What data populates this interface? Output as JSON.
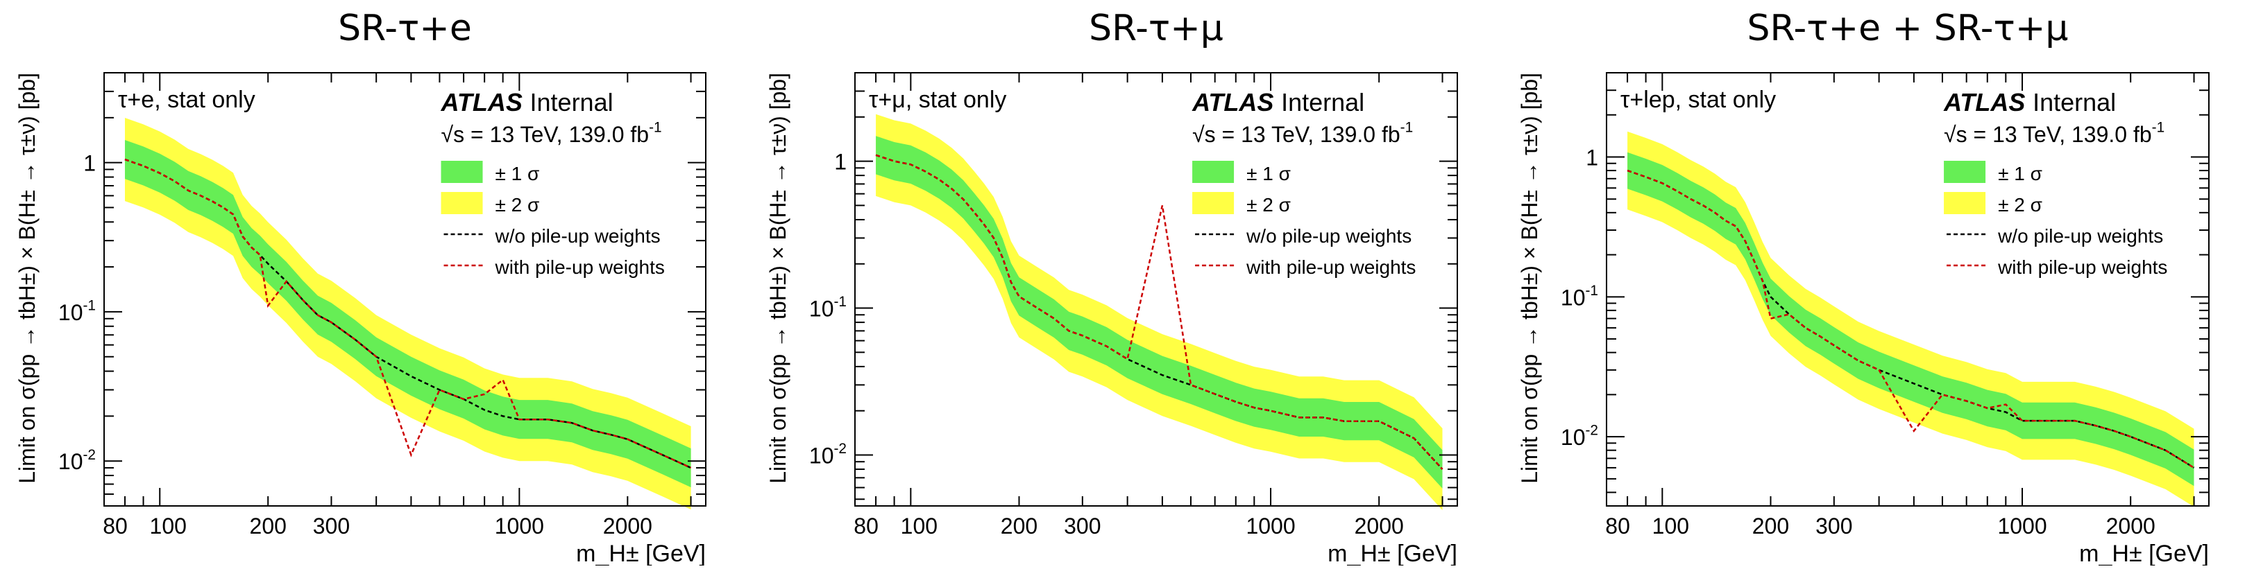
{
  "chart_data": [
    {
      "type": "line",
      "title": "SR-τ+e",
      "xlabel": "m_H± [GeV]",
      "ylabel": "Limit on σ(pp → tbH±) × B(H± → τ±ν) [pb]",
      "x_scale": "log",
      "y_scale": "log",
      "xlim": [
        70,
        3300
      ],
      "ylim": [
        0.005,
        4
      ],
      "x_ticks": [
        80,
        100,
        200,
        300,
        1000,
        2000
      ],
      "x_tick_labels": [
        "80",
        "100",
        "200",
        "300",
        "1000",
        "2000"
      ],
      "y_ticks": [
        0.01,
        0.1,
        1
      ],
      "y_tick_labels": [
        "10^-2",
        "10^-1",
        "1"
      ],
      "grid": false,
      "legend_position": "top-right",
      "annotations": {
        "region_label": "τ+e, stat only",
        "experiment": "ATLAS",
        "experiment_status": "Internal",
        "energy_lumi": "√s = 13 TeV, 139.0 fb-1"
      },
      "legend": [
        "± 1 σ",
        "± 2 σ",
        "w/o pile-up weights",
        "with pile-up weights"
      ],
      "x": [
        80,
        90,
        100,
        110,
        120,
        130,
        140,
        150,
        160,
        170,
        180,
        190,
        200,
        225,
        250,
        275,
        300,
        350,
        400,
        500,
        600,
        700,
        800,
        900,
        1000,
        1200,
        1400,
        1600,
        1800,
        2000,
        2500,
        3000
      ],
      "series": [
        {
          "name": "w/o pile-up weights",
          "values": [
            1.05,
            0.95,
            0.85,
            0.75,
            0.65,
            0.6,
            0.55,
            0.5,
            0.45,
            0.32,
            0.27,
            0.24,
            0.21,
            0.16,
            0.12,
            0.095,
            0.085,
            0.065,
            0.05,
            0.037,
            0.03,
            0.026,
            0.022,
            0.02,
            0.019,
            0.019,
            0.018,
            0.016,
            0.015,
            0.014,
            0.011,
            0.009
          ]
        },
        {
          "name": "with pile-up weights",
          "values": [
            1.05,
            0.95,
            0.85,
            0.75,
            0.65,
            0.6,
            0.55,
            0.5,
            0.45,
            0.32,
            0.27,
            0.24,
            0.11,
            0.16,
            0.12,
            0.095,
            0.085,
            0.065,
            0.05,
            0.011,
            0.03,
            0.026,
            0.028,
            0.035,
            0.019,
            0.019,
            0.018,
            0.016,
            0.015,
            0.014,
            0.011,
            0.009
          ]
        }
      ],
      "band_1sigma_factor": 1.35,
      "band_2sigma_factor": 1.9,
      "colors": {
        "band_1sigma": "#66ee55",
        "band_2sigma": "#ffff44",
        "line_nominal": "#000000",
        "line_pileup": "#cc0000"
      }
    },
    {
      "type": "line",
      "title": "SR-τ+μ",
      "xlabel": "m_H± [GeV]",
      "ylabel": "Limit on σ(pp → tbH±) × B(H± → τ±ν) [pb]",
      "x_scale": "log",
      "y_scale": "log",
      "xlim": [
        70,
        3300
      ],
      "ylim": [
        0.0045,
        4
      ],
      "x_ticks": [
        80,
        100,
        200,
        300,
        1000,
        2000
      ],
      "x_tick_labels": [
        "80",
        "100",
        "200",
        "300",
        "1000",
        "2000"
      ],
      "y_ticks": [
        0.01,
        0.1,
        1
      ],
      "y_tick_labels": [
        "10^-2",
        "10^-1",
        "1"
      ],
      "grid": false,
      "legend_position": "top-right",
      "annotations": {
        "region_label": "τ+μ, stat only",
        "experiment": "ATLAS",
        "experiment_status": "Internal",
        "energy_lumi": "√s = 13 TeV, 139.0 fb-1"
      },
      "legend": [
        "± 1 σ",
        "± 2 σ",
        "w/o pile-up weights",
        "with pile-up weights"
      ],
      "x": [
        80,
        90,
        100,
        110,
        120,
        130,
        140,
        150,
        160,
        170,
        180,
        190,
        200,
        225,
        250,
        275,
        300,
        350,
        400,
        500,
        600,
        700,
        800,
        900,
        1000,
        1200,
        1400,
        1600,
        1800,
        2000,
        2500,
        3000
      ],
      "series": [
        {
          "name": "w/o pile-up weights",
          "values": [
            1.1,
            1.0,
            0.95,
            0.85,
            0.75,
            0.65,
            0.55,
            0.45,
            0.37,
            0.3,
            0.22,
            0.15,
            0.12,
            0.1,
            0.085,
            0.07,
            0.065,
            0.055,
            0.045,
            0.035,
            0.03,
            0.026,
            0.023,
            0.021,
            0.02,
            0.018,
            0.018,
            0.017,
            0.017,
            0.017,
            0.013,
            0.008
          ]
        },
        {
          "name": "with pile-up weights",
          "values": [
            1.1,
            1.0,
            0.95,
            0.85,
            0.75,
            0.65,
            0.55,
            0.45,
            0.37,
            0.3,
            0.22,
            0.15,
            0.12,
            0.1,
            0.085,
            0.07,
            0.065,
            0.055,
            0.045,
            0.5,
            0.03,
            0.026,
            0.023,
            0.021,
            0.02,
            0.018,
            0.018,
            0.017,
            0.017,
            0.017,
            0.013,
            0.008
          ]
        }
      ],
      "band_1sigma_factor": 1.35,
      "band_2sigma_factor": 1.9,
      "colors": {
        "band_1sigma": "#66ee55",
        "band_2sigma": "#ffff44",
        "line_nominal": "#000000",
        "line_pileup": "#cc0000"
      }
    },
    {
      "type": "line",
      "title": "SR-τ+e + SR-τ+μ",
      "xlabel": "m_H± [GeV]",
      "ylabel": "Limit on σ(pp → tbH±) × B(H± → τ±ν) [pb]",
      "x_scale": "log",
      "y_scale": "log",
      "xlim": [
        70,
        3300
      ],
      "ylim": [
        0.0032,
        4
      ],
      "x_ticks": [
        80,
        100,
        200,
        300,
        1000,
        2000
      ],
      "x_tick_labels": [
        "80",
        "100",
        "200",
        "300",
        "1000",
        "2000"
      ],
      "y_ticks": [
        0.01,
        0.1,
        1
      ],
      "y_tick_labels": [
        "10^-2",
        "10^-1",
        "1"
      ],
      "grid": false,
      "legend_position": "top-right",
      "annotations": {
        "region_label": "τ+lep, stat only",
        "experiment": "ATLAS",
        "experiment_status": "Internal",
        "energy_lumi": "√s = 13 TeV, 139.0 fb-1"
      },
      "legend": [
        "± 1 σ",
        "± 2 σ",
        "w/o pile-up weights",
        "with pile-up weights"
      ],
      "x": [
        80,
        90,
        100,
        110,
        120,
        130,
        140,
        150,
        160,
        170,
        180,
        190,
        200,
        225,
        250,
        275,
        300,
        350,
        400,
        500,
        600,
        700,
        800,
        900,
        1000,
        1200,
        1400,
        1600,
        1800,
        2000,
        2500,
        3000
      ],
      "series": [
        {
          "name": "w/o pile-up weights",
          "values": [
            0.8,
            0.72,
            0.65,
            0.57,
            0.5,
            0.45,
            0.4,
            0.35,
            0.32,
            0.25,
            0.18,
            0.13,
            0.1,
            0.075,
            0.06,
            0.052,
            0.045,
            0.035,
            0.03,
            0.024,
            0.02,
            0.018,
            0.016,
            0.015,
            0.013,
            0.013,
            0.013,
            0.012,
            0.011,
            0.01,
            0.008,
            0.006
          ]
        },
        {
          "name": "with pile-up weights",
          "values": [
            0.8,
            0.72,
            0.65,
            0.57,
            0.5,
            0.45,
            0.4,
            0.35,
            0.32,
            0.25,
            0.18,
            0.13,
            0.07,
            0.075,
            0.06,
            0.052,
            0.045,
            0.035,
            0.03,
            0.011,
            0.02,
            0.018,
            0.016,
            0.017,
            0.013,
            0.013,
            0.013,
            0.012,
            0.011,
            0.01,
            0.008,
            0.006
          ]
        }
      ],
      "band_1sigma_factor": 1.35,
      "band_2sigma_factor": 1.9,
      "colors": {
        "band_1sigma": "#66ee55",
        "band_2sigma": "#ffff44",
        "line_nominal": "#000000",
        "line_pileup": "#cc0000"
      }
    }
  ]
}
